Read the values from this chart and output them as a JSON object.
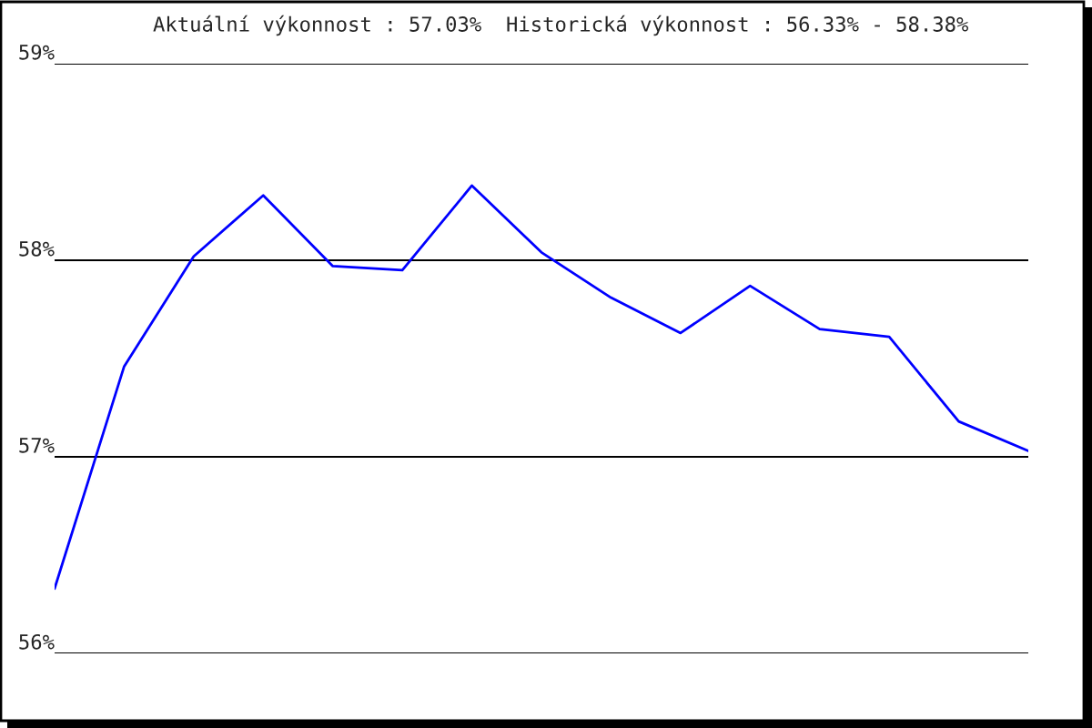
{
  "chart_data": {
    "type": "line",
    "title": "Aktuální výkonnost : 57.03%  Historická výkonnost : 56.33% - 58.38%",
    "categories": [
      null,
      null,
      null,
      null,
      null,
      null,
      null,
      null,
      null,
      null,
      null,
      null,
      null,
      null,
      null
    ],
    "series": [
      {
        "color": "#0000ff",
        "values": [
          56.33,
          57.46,
          58.02,
          58.33,
          57.97,
          57.95,
          58.38,
          58.04,
          57.81,
          57.63,
          57.87,
          57.65,
          57.61,
          57.18,
          57.03
        ]
      }
    ],
    "ylim": [
      56,
      59
    ],
    "yticks": [
      {
        "value": 56,
        "label": "56%"
      },
      {
        "value": 57,
        "label": "57%"
      },
      {
        "value": 58,
        "label": "58%"
      },
      {
        "value": 59,
        "label": "59%"
      }
    ],
    "grid": "y",
    "legend": false,
    "tick_labels": "y",
    "marker": "none",
    "line_style": "solid"
  }
}
